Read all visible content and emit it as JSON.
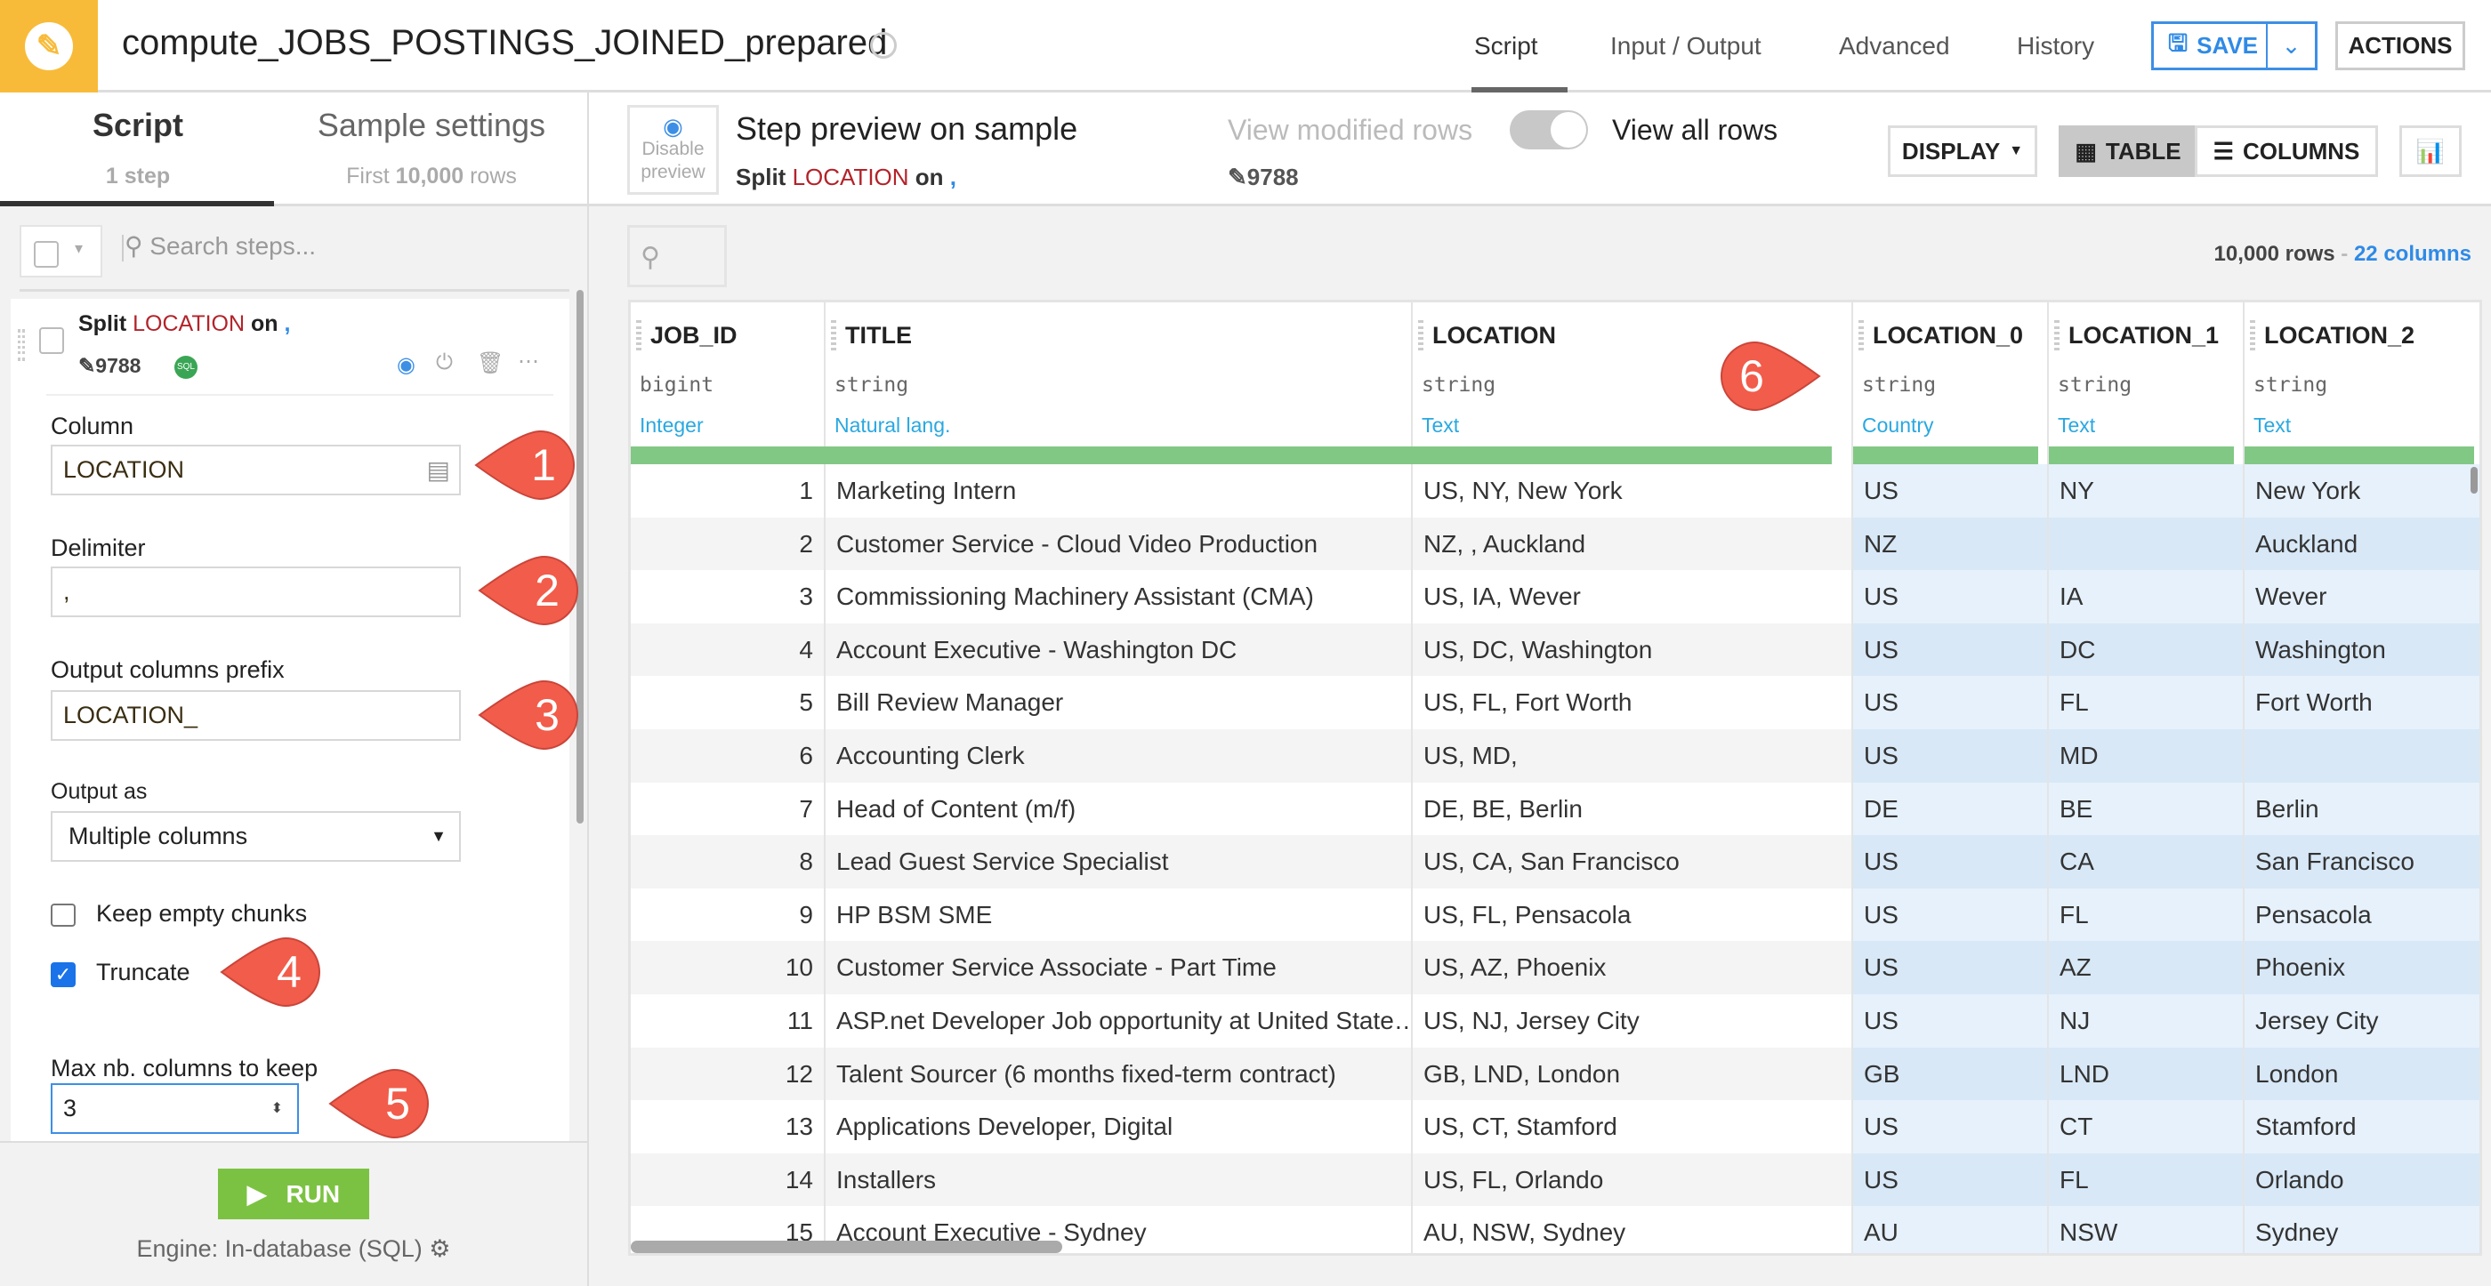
{
  "header": {
    "title": "compute_JOBS_POSTINGS_JOINED_prepared",
    "tabs": [
      "Script",
      "Input / Output",
      "Advanced",
      "History"
    ],
    "active_tab": "Script",
    "save_label": "SAVE",
    "actions_label": "ACTIONS"
  },
  "left_panel": {
    "tabs": [
      {
        "label": "Script",
        "sub": "1 step"
      },
      {
        "label": "Sample settings",
        "sub_prefix": "First ",
        "sub_bold": "10,000",
        "sub_suffix": " rows"
      }
    ],
    "search_placeholder": "Search steps...",
    "step": {
      "prefix": "Split ",
      "column": "LOCATION",
      "mid": " on ",
      "delim": ",",
      "id": "9788",
      "badge": "SQL"
    },
    "form": {
      "column_label": "Column",
      "column_value": "LOCATION",
      "delimiter_label": "Delimiter",
      "delimiter_value": ",",
      "prefix_label": "Output columns prefix",
      "prefix_value": "LOCATION_",
      "output_as_label": "Output as",
      "output_as_value": "Multiple columns",
      "keep_empty_label": "Keep empty chunks",
      "keep_empty_checked": false,
      "truncate_label": "Truncate",
      "truncate_checked": true,
      "max_cols_label": "Max nb. columns to keep",
      "max_cols_value": "3"
    },
    "run_label": "RUN",
    "engine": "Engine: In-database (SQL)"
  },
  "preview": {
    "disable_label": "Disable preview",
    "title": "Step preview on sample",
    "step_prefix": "Split ",
    "step_column": "LOCATION",
    "step_mid": " on ",
    "step_delim": ",",
    "view_modified": "View modified rows",
    "view_all": "View all rows",
    "step_id": "9788",
    "display_label": "DISPLAY",
    "table_label": "TABLE",
    "columns_label": "COLUMNS",
    "rows": "10,000 rows",
    "sep": " - ",
    "cols": "22 columns"
  },
  "table": {
    "columns": [
      {
        "name": "JOB_ID",
        "type": "bigint",
        "meaning": "Integer"
      },
      {
        "name": "TITLE",
        "type": "string",
        "meaning": "Natural lang."
      },
      {
        "name": "LOCATION",
        "type": "string",
        "meaning": "Text"
      },
      {
        "name": "LOCATION_0",
        "type": "string",
        "meaning": "Country"
      },
      {
        "name": "LOCATION_1",
        "type": "string",
        "meaning": "Text"
      },
      {
        "name": "LOCATION_2",
        "type": "string",
        "meaning": "Text"
      }
    ],
    "rows": [
      [
        "1",
        "Marketing Intern",
        "US, NY, New York",
        "US",
        "NY",
        "New York"
      ],
      [
        "2",
        "Customer Service - Cloud Video Production",
        "NZ, , Auckland",
        "NZ",
        "",
        "Auckland"
      ],
      [
        "3",
        "Commissioning Machinery Assistant (CMA)",
        "US, IA, Wever",
        "US",
        "IA",
        "Wever"
      ],
      [
        "4",
        "Account Executive - Washington DC",
        "US, DC, Washington",
        "US",
        "DC",
        "Washington"
      ],
      [
        "5",
        "Bill Review Manager",
        "US, FL, Fort Worth",
        "US",
        "FL",
        "Fort Worth"
      ],
      [
        "6",
        "Accounting Clerk",
        "US, MD,",
        "US",
        "MD",
        ""
      ],
      [
        "7",
        "Head of Content (m/f)",
        "DE, BE, Berlin",
        "DE",
        "BE",
        "Berlin"
      ],
      [
        "8",
        "Lead Guest Service Specialist",
        "US, CA, San Francisco",
        "US",
        "CA",
        "San Francisco"
      ],
      [
        "9",
        "HP BSM SME",
        "US, FL, Pensacola",
        "US",
        "FL",
        "Pensacola"
      ],
      [
        "10",
        "Customer Service Associate - Part Time",
        "US, AZ, Phoenix",
        "US",
        "AZ",
        "Phoenix"
      ],
      [
        "11",
        "ASP.net Developer Job opportunity at United State…",
        "US, NJ, Jersey City",
        "US",
        "NJ",
        "Jersey City"
      ],
      [
        "12",
        "Talent Sourcer (6 months fixed-term contract)",
        "GB, LND, London",
        "GB",
        "LND",
        "London"
      ],
      [
        "13",
        "Applications Developer, Digital",
        "US, CT, Stamford",
        "US",
        "CT",
        "Stamford"
      ],
      [
        "14",
        "Installers",
        "US, FL, Orlando",
        "US",
        "FL",
        "Orlando"
      ],
      [
        "15",
        "Account Executive - Sydney",
        "AU, NSW, Sydney",
        "AU",
        "NSW",
        "Sydney"
      ]
    ]
  },
  "callouts": [
    "1",
    "2",
    "3",
    "4",
    "5",
    "6"
  ],
  "colors": {
    "brand": "#f8bb39",
    "accent": "#2f8ae6",
    "run": "#7cc242",
    "callout": "#f25c4a",
    "valid_bar": "#82c885"
  }
}
